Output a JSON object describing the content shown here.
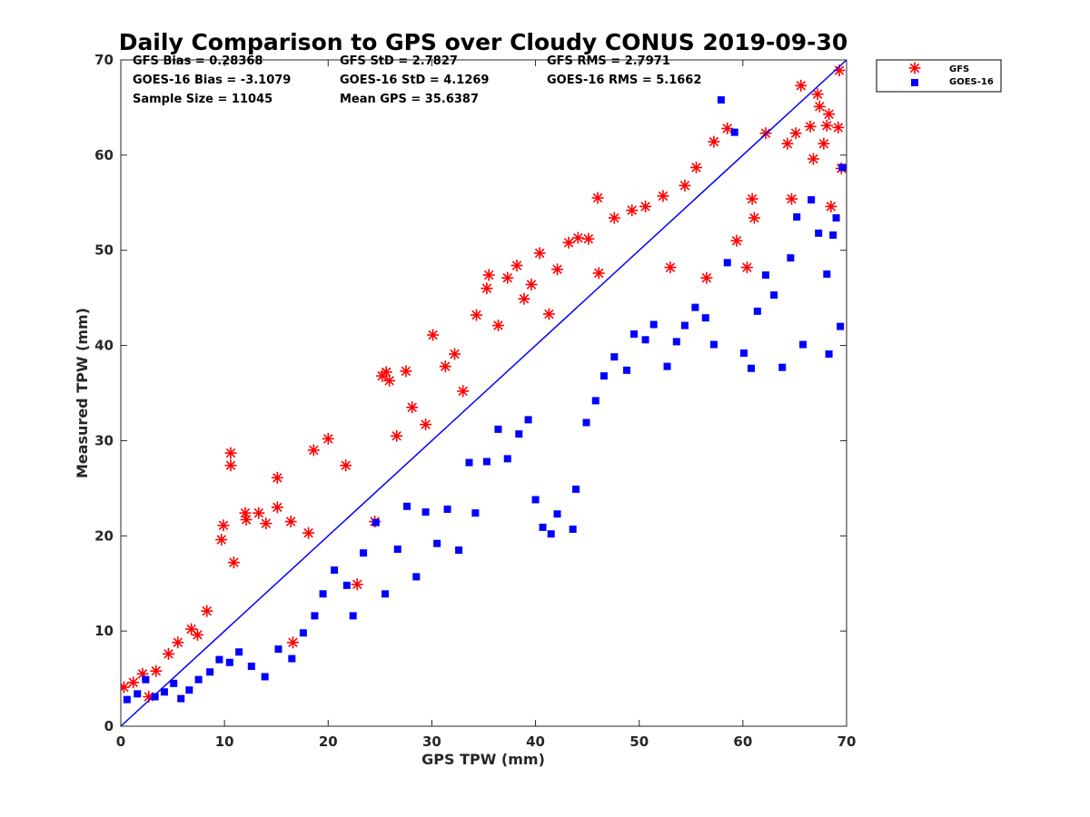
{
  "chart_data": {
    "type": "scatter",
    "title": "Daily Comparison to GPS over Cloudy CONUS 2019-09-30",
    "xlabel": "GPS TPW (mm)",
    "ylabel": "Measured TPW (mm)",
    "xlim": [
      0,
      70
    ],
    "ylim": [
      0,
      70
    ],
    "xticks": [
      "0",
      "10",
      "20",
      "30",
      "40",
      "50",
      "60",
      "70"
    ],
    "yticks": [
      "0",
      "10",
      "20",
      "30",
      "40",
      "50",
      "60",
      "70"
    ],
    "grid": false,
    "legend_position": "outside top-right",
    "reference_line": {
      "from": [
        0,
        0
      ],
      "to": [
        70,
        70
      ],
      "color": "#0000ff"
    },
    "stats": [
      "GFS Bias = 0.28368",
      "GFS StD = 2.7827",
      "GFS RMS = 2.7971",
      "GOES-16 Bias = -3.1079",
      "GOES-16 StD = 4.1269",
      "GOES-16 RMS = 5.1662",
      "Sample Size = 11045",
      "Mean GPS = 35.6387"
    ],
    "series": [
      {
        "name": "GFS",
        "color": "#ff0000",
        "marker": "asterisk",
        "points": [
          [
            0.3,
            4.1
          ],
          [
            1.2,
            4.6
          ],
          [
            2.1,
            5.5
          ],
          [
            2.7,
            3.1
          ],
          [
            3.4,
            5.8
          ],
          [
            4.6,
            7.6
          ],
          [
            5.5,
            8.8
          ],
          [
            6.8,
            10.2
          ],
          [
            7.4,
            9.6
          ],
          [
            8.3,
            12.1
          ],
          [
            9.7,
            19.6
          ],
          [
            9.9,
            21.1
          ],
          [
            10.6,
            28.7
          ],
          [
            10.6,
            27.4
          ],
          [
            10.9,
            17.2
          ],
          [
            12.0,
            22.4
          ],
          [
            12.1,
            21.7
          ],
          [
            13.3,
            22.4
          ],
          [
            14.0,
            21.3
          ],
          [
            15.1,
            26.1
          ],
          [
            15.1,
            23.0
          ],
          [
            16.4,
            21.5
          ],
          [
            16.6,
            8.8
          ],
          [
            18.1,
            20.3
          ],
          [
            18.6,
            29.0
          ],
          [
            20.0,
            30.2
          ],
          [
            21.7,
            27.4
          ],
          [
            22.8,
            14.9
          ],
          [
            24.5,
            21.5
          ],
          [
            25.2,
            36.8
          ],
          [
            25.6,
            37.2
          ],
          [
            25.9,
            36.3
          ],
          [
            26.6,
            30.5
          ],
          [
            27.5,
            37.3
          ],
          [
            28.1,
            33.5
          ],
          [
            29.4,
            31.7
          ],
          [
            30.1,
            41.1
          ],
          [
            31.3,
            37.8
          ],
          [
            32.2,
            39.1
          ],
          [
            33.0,
            35.2
          ],
          [
            34.3,
            43.2
          ],
          [
            35.3,
            46.0
          ],
          [
            35.5,
            47.4
          ],
          [
            36.4,
            42.1
          ],
          [
            37.3,
            47.1
          ],
          [
            38.2,
            48.4
          ],
          [
            38.9,
            44.9
          ],
          [
            39.6,
            46.4
          ],
          [
            40.4,
            49.7
          ],
          [
            41.3,
            43.3
          ],
          [
            42.1,
            48.0
          ],
          [
            43.2,
            50.8
          ],
          [
            44.1,
            51.3
          ],
          [
            45.1,
            51.2
          ],
          [
            46.0,
            55.5
          ],
          [
            46.1,
            47.6
          ],
          [
            47.6,
            53.4
          ],
          [
            49.3,
            54.2
          ],
          [
            50.6,
            54.6
          ],
          [
            52.3,
            55.7
          ],
          [
            53.0,
            48.2
          ],
          [
            54.4,
            56.8
          ],
          [
            55.5,
            58.7
          ],
          [
            56.5,
            47.1
          ],
          [
            57.2,
            61.4
          ],
          [
            58.5,
            62.8
          ],
          [
            59.4,
            51.0
          ],
          [
            60.4,
            48.2
          ],
          [
            60.9,
            55.4
          ],
          [
            61.1,
            53.4
          ],
          [
            62.2,
            62.3
          ],
          [
            64.3,
            61.2
          ],
          [
            64.7,
            55.4
          ],
          [
            65.1,
            62.3
          ],
          [
            65.6,
            67.3
          ],
          [
            66.5,
            63.0
          ],
          [
            66.8,
            59.6
          ],
          [
            67.2,
            66.4
          ],
          [
            67.4,
            65.1
          ],
          [
            67.8,
            61.2
          ],
          [
            68.1,
            63.1
          ],
          [
            68.3,
            64.3
          ],
          [
            68.5,
            54.6
          ],
          [
            69.2,
            62.9
          ],
          [
            69.3,
            68.9
          ],
          [
            69.5,
            58.6
          ]
        ]
      },
      {
        "name": "GOES-16",
        "color": "#0000ff",
        "marker": "square",
        "points": [
          [
            0.6,
            2.8
          ],
          [
            1.6,
            3.4
          ],
          [
            2.4,
            4.9
          ],
          [
            3.3,
            3.1
          ],
          [
            4.2,
            3.6
          ],
          [
            5.1,
            4.5
          ],
          [
            5.8,
            2.9
          ],
          [
            6.6,
            3.8
          ],
          [
            7.5,
            4.9
          ],
          [
            8.6,
            5.7
          ],
          [
            9.5,
            7.0
          ],
          [
            10.5,
            6.7
          ],
          [
            11.4,
            7.8
          ],
          [
            12.6,
            6.3
          ],
          [
            13.9,
            5.2
          ],
          [
            15.2,
            8.1
          ],
          [
            16.5,
            7.1
          ],
          [
            17.6,
            9.8
          ],
          [
            18.7,
            11.6
          ],
          [
            19.5,
            13.9
          ],
          [
            20.6,
            16.4
          ],
          [
            21.8,
            14.8
          ],
          [
            22.4,
            11.6
          ],
          [
            23.4,
            18.2
          ],
          [
            24.6,
            21.4
          ],
          [
            25.5,
            13.9
          ],
          [
            26.7,
            18.6
          ],
          [
            27.6,
            23.1
          ],
          [
            28.5,
            15.7
          ],
          [
            29.4,
            22.5
          ],
          [
            30.5,
            19.2
          ],
          [
            31.5,
            22.8
          ],
          [
            32.6,
            18.5
          ],
          [
            33.6,
            27.7
          ],
          [
            34.2,
            22.4
          ],
          [
            35.3,
            27.8
          ],
          [
            36.4,
            31.2
          ],
          [
            37.3,
            28.1
          ],
          [
            38.4,
            30.7
          ],
          [
            39.3,
            32.2
          ],
          [
            40.0,
            23.8
          ],
          [
            40.7,
            20.9
          ],
          [
            41.5,
            20.2
          ],
          [
            42.1,
            22.3
          ],
          [
            43.6,
            20.7
          ],
          [
            43.9,
            24.9
          ],
          [
            44.9,
            31.9
          ],
          [
            45.8,
            34.2
          ],
          [
            46.6,
            36.8
          ],
          [
            47.6,
            38.8
          ],
          [
            48.8,
            37.4
          ],
          [
            49.5,
            41.2
          ],
          [
            50.6,
            40.6
          ],
          [
            51.4,
            42.2
          ],
          [
            52.7,
            37.8
          ],
          [
            53.6,
            40.4
          ],
          [
            54.4,
            42.1
          ],
          [
            55.4,
            44.0
          ],
          [
            56.4,
            42.9
          ],
          [
            57.2,
            40.1
          ],
          [
            57.9,
            65.8
          ],
          [
            58.5,
            48.7
          ],
          [
            59.2,
            62.4
          ],
          [
            60.1,
            39.2
          ],
          [
            60.8,
            37.6
          ],
          [
            61.4,
            43.6
          ],
          [
            62.2,
            47.4
          ],
          [
            63.0,
            45.3
          ],
          [
            63.8,
            37.7
          ],
          [
            64.6,
            49.2
          ],
          [
            65.2,
            53.5
          ],
          [
            65.8,
            40.1
          ],
          [
            66.6,
            55.3
          ],
          [
            67.3,
            51.8
          ],
          [
            68.1,
            47.5
          ],
          [
            68.3,
            39.1
          ],
          [
            68.7,
            51.6
          ],
          [
            69.0,
            53.4
          ],
          [
            69.4,
            42.0
          ],
          [
            69.6,
            58.7
          ]
        ]
      }
    ]
  }
}
